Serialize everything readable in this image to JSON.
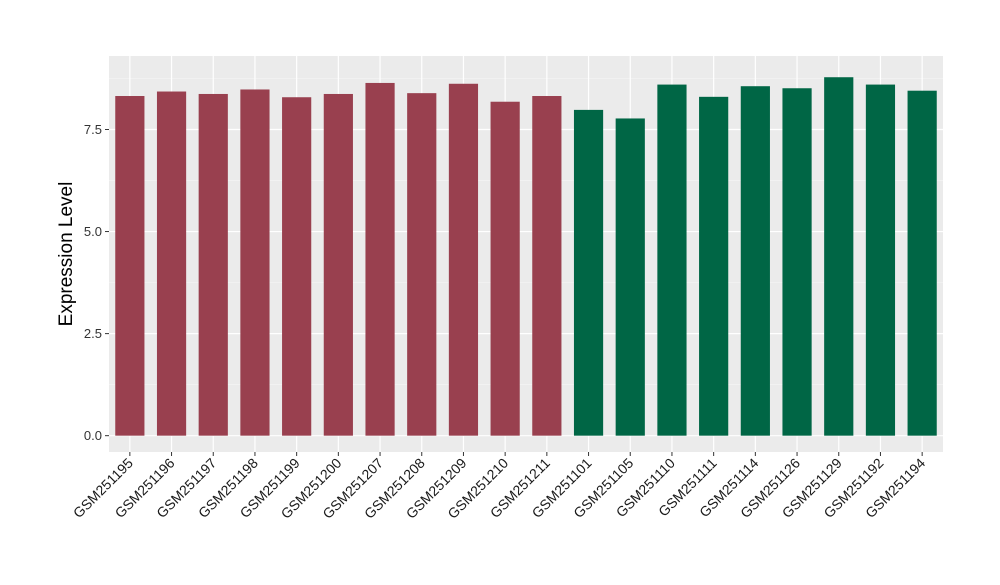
{
  "chart_data": {
    "type": "bar",
    "title": "",
    "xlabel": "",
    "ylabel": "Expression Level",
    "ylim": [
      -0.4,
      9.3
    ],
    "yticks": [
      0.0,
      2.5,
      5.0,
      7.5
    ],
    "ytick_labels": [
      "0.0",
      "2.5",
      "5.0",
      "7.5"
    ],
    "grid": true,
    "legend": "none",
    "categories": [
      "GSM251195",
      "GSM251196",
      "GSM251197",
      "GSM251198",
      "GSM251199",
      "GSM251200",
      "GSM251207",
      "GSM251208",
      "GSM251209",
      "GSM251210",
      "GSM251211",
      "GSM251101",
      "GSM251105",
      "GSM251110",
      "GSM251111",
      "GSM251114",
      "GSM251126",
      "GSM251129",
      "GSM251192",
      "GSM251194"
    ],
    "values": [
      8.32,
      8.43,
      8.37,
      8.48,
      8.29,
      8.37,
      8.64,
      8.39,
      8.62,
      8.18,
      8.32,
      7.98,
      7.77,
      8.6,
      8.3,
      8.56,
      8.51,
      8.78,
      8.6,
      8.45
    ],
    "bar_colors": [
      "#99404F",
      "#99404F",
      "#99404F",
      "#99404F",
      "#99404F",
      "#99404F",
      "#99404F",
      "#99404F",
      "#99404F",
      "#99404F",
      "#99404F",
      "#006645",
      "#006645",
      "#006645",
      "#006645",
      "#006645",
      "#006645",
      "#006645",
      "#006645",
      "#006645"
    ],
    "colors": {
      "panel_background": "#EBEBEB",
      "grid_major": "#FFFFFF",
      "grid_minor": "#F5F5F5",
      "group_a": "#99404F",
      "group_b": "#006645"
    }
  }
}
